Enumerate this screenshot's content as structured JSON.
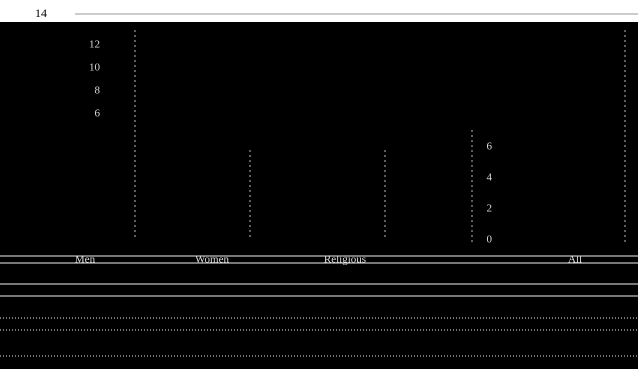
{
  "page_number": "14",
  "figure": {
    "left_axis": {
      "ticks": [
        "12",
        "10",
        "8",
        "6"
      ]
    },
    "right_axis": {
      "ticks": [
        "6",
        "4",
        "2",
        "0"
      ]
    },
    "groups": [
      {
        "label": "Men"
      },
      {
        "label": "Women"
      },
      {
        "label": "Religious"
      },
      {
        "label": "All"
      }
    ]
  }
}
